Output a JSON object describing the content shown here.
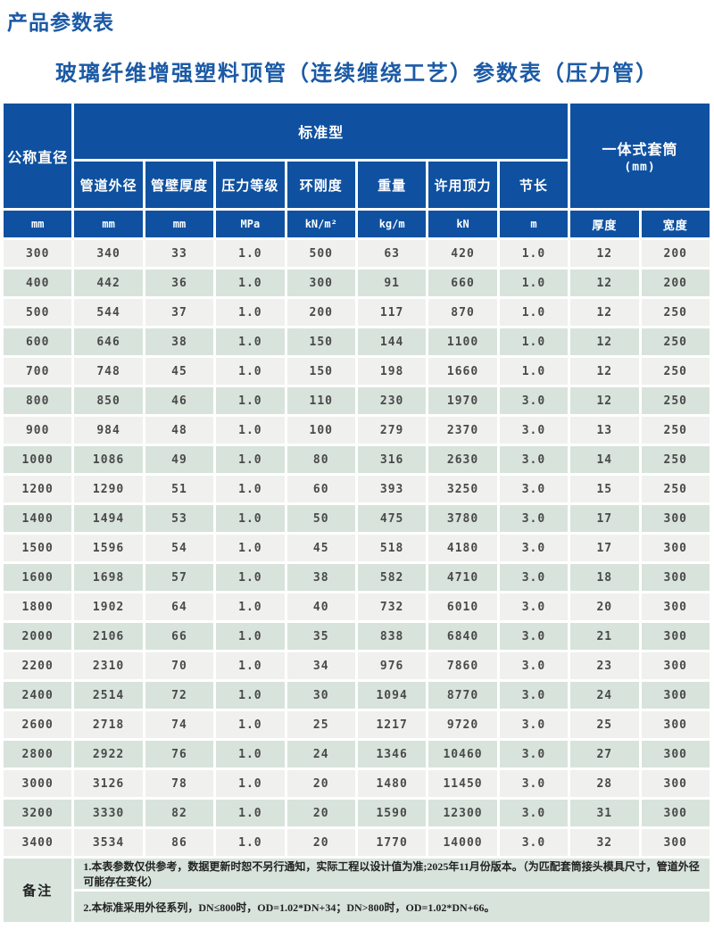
{
  "page": {
    "title": "产品参数表",
    "subtitle": "玻璃纤维增强塑料顶管（连续缠绕工艺）参数表（压力管）"
  },
  "colors": {
    "header_blue": "#0F51A0",
    "title_blue": "#1B5AA6",
    "row_gray": "#F0F0EE",
    "row_green": "#D8E3DC",
    "data_text": "#4A4A4A"
  },
  "table": {
    "header": {
      "nominal_diameter": "公称直径",
      "standard_type": "标准型",
      "sleeve_title": "一体式套筒",
      "sleeve_unit": "(mm)",
      "sub_columns": [
        "管道外径",
        "管壁厚度",
        "压力等级",
        "环刚度",
        "重量",
        "许用顶力",
        "节长"
      ],
      "units": [
        "mm",
        "mm",
        "mm",
        "MPa",
        "kN/m²",
        "kg/m",
        "kN",
        "m",
        "厚度",
        "宽度"
      ]
    },
    "rows": [
      [
        "300",
        "340",
        "33",
        "1.0",
        "500",
        "63",
        "420",
        "1.0",
        "12",
        "200"
      ],
      [
        "400",
        "442",
        "36",
        "1.0",
        "300",
        "91",
        "660",
        "1.0",
        "12",
        "200"
      ],
      [
        "500",
        "544",
        "37",
        "1.0",
        "200",
        "117",
        "870",
        "1.0",
        "12",
        "250"
      ],
      [
        "600",
        "646",
        "38",
        "1.0",
        "150",
        "144",
        "1100",
        "1.0",
        "12",
        "250"
      ],
      [
        "700",
        "748",
        "45",
        "1.0",
        "150",
        "198",
        "1660",
        "1.0",
        "12",
        "250"
      ],
      [
        "800",
        "850",
        "46",
        "1.0",
        "110",
        "230",
        "1970",
        "3.0",
        "12",
        "250"
      ],
      [
        "900",
        "984",
        "48",
        "1.0",
        "100",
        "279",
        "2370",
        "3.0",
        "13",
        "250"
      ],
      [
        "1000",
        "1086",
        "49",
        "1.0",
        "80",
        "316",
        "2630",
        "3.0",
        "14",
        "250"
      ],
      [
        "1200",
        "1290",
        "51",
        "1.0",
        "60",
        "393",
        "3250",
        "3.0",
        "15",
        "250"
      ],
      [
        "1400",
        "1494",
        "53",
        "1.0",
        "50",
        "475",
        "3780",
        "3.0",
        "17",
        "300"
      ],
      [
        "1500",
        "1596",
        "54",
        "1.0",
        "45",
        "518",
        "4180",
        "3.0",
        "17",
        "300"
      ],
      [
        "1600",
        "1698",
        "57",
        "1.0",
        "38",
        "582",
        "4710",
        "3.0",
        "18",
        "300"
      ],
      [
        "1800",
        "1902",
        "64",
        "1.0",
        "40",
        "732",
        "6010",
        "3.0",
        "20",
        "300"
      ],
      [
        "2000",
        "2106",
        "66",
        "1.0",
        "35",
        "838",
        "6840",
        "3.0",
        "21",
        "300"
      ],
      [
        "2200",
        "2310",
        "70",
        "1.0",
        "34",
        "976",
        "7860",
        "3.0",
        "23",
        "300"
      ],
      [
        "2400",
        "2514",
        "72",
        "1.0",
        "30",
        "1094",
        "8770",
        "3.0",
        "24",
        "300"
      ],
      [
        "2600",
        "2718",
        "74",
        "1.0",
        "25",
        "1217",
        "9720",
        "3.0",
        "25",
        "300"
      ],
      [
        "2800",
        "2922",
        "76",
        "1.0",
        "24",
        "1346",
        "10460",
        "3.0",
        "27",
        "300"
      ],
      [
        "3000",
        "3126",
        "78",
        "1.0",
        "20",
        "1480",
        "11450",
        "3.0",
        "28",
        "300"
      ],
      [
        "3200",
        "3330",
        "82",
        "1.0",
        "20",
        "1590",
        "12300",
        "3.0",
        "31",
        "300"
      ],
      [
        "3400",
        "3534",
        "86",
        "1.0",
        "20",
        "1770",
        "14000",
        "3.0",
        "32",
        "300"
      ]
    ]
  },
  "remark": {
    "label": "备注",
    "note1": "1.本表参数仅供参考，数据更新时恕不另行通知，实际工程以设计值为准;2025年11月份版本。（为匹配套筒接头模具尺寸，管道外径可能存在变化）",
    "note2": "2.本标准采用外径系列，DN≤800时，OD=1.02*DN+34；DN>800时，OD=1.02*DN+66。"
  }
}
